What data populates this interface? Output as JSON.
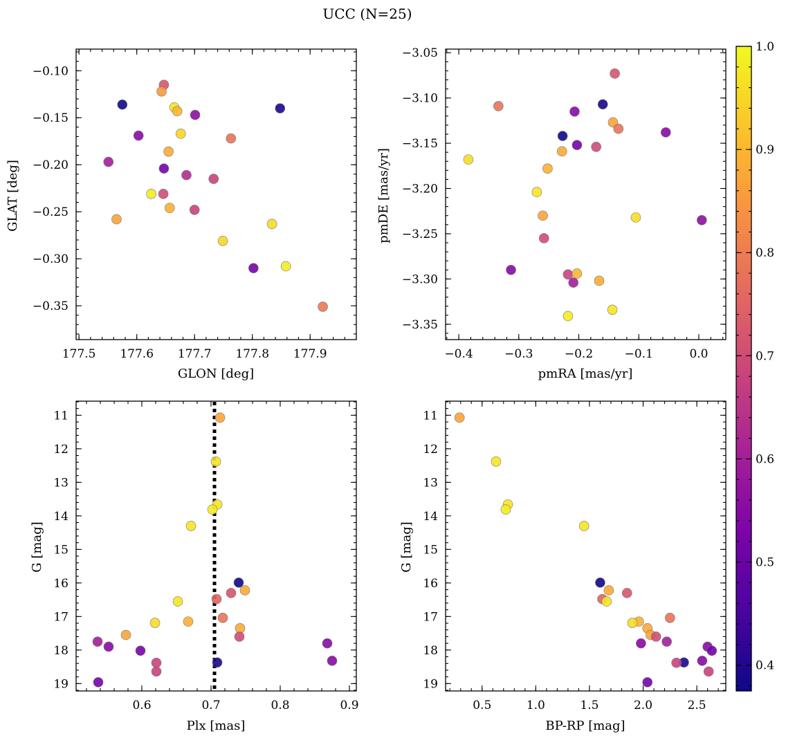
{
  "figure": {
    "title": "UCC (N=25)"
  },
  "colorbar": {
    "colormap": "plasma",
    "range": [
      0.375,
      1.0
    ],
    "ticks": [
      0.4,
      0.5,
      0.6,
      0.7,
      0.8,
      0.9,
      1.0
    ],
    "tick_labels": [
      "0.4",
      "0.5",
      "0.6",
      "0.7",
      "0.8",
      "0.9",
      "1.0"
    ]
  },
  "chart_data": [
    {
      "type": "scatter",
      "id": "glon-glat",
      "xlabel": "GLON [deg]",
      "ylabel": "GLAT [deg]",
      "xlim": [
        177.495,
        177.98
      ],
      "ylim": [
        -0.386,
        -0.077
      ],
      "xticks": [
        177.5,
        177.6,
        177.7,
        177.8,
        177.9
      ],
      "xtick_labels": [
        "177.5",
        "177.6",
        "177.7",
        "177.8",
        "177.9"
      ],
      "yticks": [
        -0.1,
        -0.15,
        -0.2,
        -0.25,
        -0.3,
        -0.35
      ],
      "ytick_labels": [
        "−0.10",
        "−0.15",
        "−0.20",
        "−0.25",
        "−0.30",
        "−0.35"
      ],
      "y_inverted": false,
      "points": [
        {
          "x": 177.575,
          "y": -0.136,
          "c": 0.38
        },
        {
          "x": 177.848,
          "y": -0.14,
          "c": 0.39
        },
        {
          "x": 177.647,
          "y": -0.115,
          "c": 0.72
        },
        {
          "x": 177.643,
          "y": -0.122,
          "c": 0.85
        },
        {
          "x": 177.665,
          "y": -0.139,
          "c": 0.97
        },
        {
          "x": 177.67,
          "y": -0.143,
          "c": 0.9
        },
        {
          "x": 177.701,
          "y": -0.147,
          "c": 0.56
        },
        {
          "x": 177.603,
          "y": -0.169,
          "c": 0.55
        },
        {
          "x": 177.676,
          "y": -0.167,
          "c": 0.95
        },
        {
          "x": 177.763,
          "y": -0.172,
          "c": 0.78
        },
        {
          "x": 177.655,
          "y": -0.186,
          "c": 0.88
        },
        {
          "x": 177.551,
          "y": -0.197,
          "c": 0.6
        },
        {
          "x": 177.647,
          "y": -0.204,
          "c": 0.52
        },
        {
          "x": 177.686,
          "y": -0.211,
          "c": 0.63
        },
        {
          "x": 177.733,
          "y": -0.215,
          "c": 0.68
        },
        {
          "x": 177.625,
          "y": -0.231,
          "c": 0.98
        },
        {
          "x": 177.646,
          "y": -0.231,
          "c": 0.7
        },
        {
          "x": 177.657,
          "y": -0.246,
          "c": 0.89
        },
        {
          "x": 177.7,
          "y": -0.248,
          "c": 0.68
        },
        {
          "x": 177.565,
          "y": -0.258,
          "c": 0.87
        },
        {
          "x": 177.834,
          "y": -0.263,
          "c": 0.96
        },
        {
          "x": 177.749,
          "y": -0.281,
          "c": 0.95
        },
        {
          "x": 177.802,
          "y": -0.31,
          "c": 0.52
        },
        {
          "x": 177.858,
          "y": -0.308,
          "c": 0.98
        },
        {
          "x": 177.922,
          "y": -0.351,
          "c": 0.79
        }
      ]
    },
    {
      "type": "scatter",
      "id": "pmra-pmde",
      "xlabel": "pmRA [mas/yr]",
      "ylabel": "pmDE [mas/yr]",
      "xlim": [
        -0.422,
        0.045
      ],
      "ylim": [
        -3.367,
        -3.046
      ],
      "xticks": [
        -0.4,
        -0.3,
        -0.2,
        -0.1,
        0.0
      ],
      "xtick_labels": [
        "−0.4",
        "−0.3",
        "−0.2",
        "−0.1",
        "0.0"
      ],
      "yticks": [
        -3.05,
        -3.1,
        -3.15,
        -3.2,
        -3.25,
        -3.3,
        -3.35
      ],
      "ytick_labels": [
        "−3.05",
        "−3.10",
        "−3.15",
        "−3.20",
        "−3.25",
        "−3.30",
        "−3.35"
      ],
      "y_inverted": false,
      "points": [
        {
          "x": -0.14,
          "y": -3.073,
          "c": 0.72
        },
        {
          "x": -0.334,
          "y": -3.109,
          "c": 0.78
        },
        {
          "x": -0.16,
          "y": -3.107,
          "c": 0.39
        },
        {
          "x": -0.207,
          "y": -3.115,
          "c": 0.55
        },
        {
          "x": -0.143,
          "y": -3.127,
          "c": 0.87
        },
        {
          "x": -0.134,
          "y": -3.134,
          "c": 0.78
        },
        {
          "x": -0.055,
          "y": -3.138,
          "c": 0.55
        },
        {
          "x": -0.227,
          "y": -3.142,
          "c": 0.38
        },
        {
          "x": -0.203,
          "y": -3.152,
          "c": 0.52
        },
        {
          "x": -0.171,
          "y": -3.154,
          "c": 0.7
        },
        {
          "x": -0.228,
          "y": -3.159,
          "c": 0.88
        },
        {
          "x": -0.384,
          "y": -3.168,
          "c": 0.96
        },
        {
          "x": -0.252,
          "y": -3.178,
          "c": 0.89
        },
        {
          "x": -0.27,
          "y": -3.204,
          "c": 0.97
        },
        {
          "x": -0.26,
          "y": -3.23,
          "c": 0.87
        },
        {
          "x": -0.105,
          "y": -3.232,
          "c": 0.96
        },
        {
          "x": 0.005,
          "y": -3.235,
          "c": 0.56
        },
        {
          "x": -0.258,
          "y": -3.255,
          "c": 0.7
        },
        {
          "x": -0.313,
          "y": -3.29,
          "c": 0.55
        },
        {
          "x": -0.218,
          "y": -3.295,
          "c": 0.68
        },
        {
          "x": -0.203,
          "y": -3.294,
          "c": 0.9
        },
        {
          "x": -0.209,
          "y": -3.304,
          "c": 0.6
        },
        {
          "x": -0.166,
          "y": -3.302,
          "c": 0.88
        },
        {
          "x": -0.218,
          "y": -3.341,
          "c": 0.98
        },
        {
          "x": -0.144,
          "y": -3.334,
          "c": 0.97
        }
      ]
    },
    {
      "type": "scatter",
      "id": "plx-g",
      "xlabel": "Plx [mas]",
      "ylabel": "G [mag]",
      "xlim": [
        0.505,
        0.91
      ],
      "ylim": [
        19.22,
        10.58
      ],
      "xticks": [
        0.6,
        0.7,
        0.8,
        0.9
      ],
      "xtick_labels": [
        "0.6",
        "0.7",
        "0.8",
        "0.9"
      ],
      "yticks": [
        11,
        12,
        13,
        14,
        15,
        16,
        17,
        18,
        19
      ],
      "ytick_labels": [
        "11",
        "12",
        "13",
        "14",
        "15",
        "16",
        "17",
        "18",
        "19"
      ],
      "y_inverted": true,
      "vline": {
        "x": 0.705,
        "style": "dotted",
        "color": "#000000"
      },
      "points": [
        {
          "x": 0.713,
          "y": 11.07,
          "c": 0.87
        },
        {
          "x": 0.707,
          "y": 12.38,
          "c": 0.97
        },
        {
          "x": 0.709,
          "y": 13.66,
          "c": 0.97
        },
        {
          "x": 0.702,
          "y": 13.81,
          "c": 0.98
        },
        {
          "x": 0.671,
          "y": 14.3,
          "c": 0.97
        },
        {
          "x": 0.74,
          "y": 15.99,
          "c": 0.38
        },
        {
          "x": 0.749,
          "y": 16.22,
          "c": 0.88
        },
        {
          "x": 0.729,
          "y": 16.3,
          "c": 0.72
        },
        {
          "x": 0.708,
          "y": 16.48,
          "c": 0.75
        },
        {
          "x": 0.652,
          "y": 16.55,
          "c": 0.97
        },
        {
          "x": 0.717,
          "y": 17.04,
          "c": 0.78
        },
        {
          "x": 0.667,
          "y": 17.15,
          "c": 0.89
        },
        {
          "x": 0.619,
          "y": 17.19,
          "c": 0.96
        },
        {
          "x": 0.742,
          "y": 17.35,
          "c": 0.88
        },
        {
          "x": 0.577,
          "y": 17.55,
          "c": 0.87
        },
        {
          "x": 0.741,
          "y": 17.6,
          "c": 0.7
        },
        {
          "x": 0.536,
          "y": 17.75,
          "c": 0.6
        },
        {
          "x": 0.868,
          "y": 17.8,
          "c": 0.55
        },
        {
          "x": 0.552,
          "y": 17.9,
          "c": 0.55
        },
        {
          "x": 0.598,
          "y": 18.02,
          "c": 0.52
        },
        {
          "x": 0.875,
          "y": 18.32,
          "c": 0.55
        },
        {
          "x": 0.709,
          "y": 18.37,
          "c": 0.39
        },
        {
          "x": 0.621,
          "y": 18.38,
          "c": 0.68
        },
        {
          "x": 0.621,
          "y": 18.64,
          "c": 0.68
        },
        {
          "x": 0.537,
          "y": 18.96,
          "c": 0.52
        }
      ]
    },
    {
      "type": "scatter",
      "id": "bprp-g",
      "xlabel": "BP-RP [mag]",
      "ylabel": "G [mag]",
      "xlim": [
        0.16,
        2.77
      ],
      "ylim": [
        19.22,
        10.58
      ],
      "xticks": [
        0.5,
        1.0,
        1.5,
        2.0,
        2.5
      ],
      "xtick_labels": [
        "0.5",
        "1.0",
        "1.5",
        "2.0",
        "2.5"
      ],
      "yticks": [
        11,
        12,
        13,
        14,
        15,
        16,
        17,
        18,
        19
      ],
      "ytick_labels": [
        "11",
        "12",
        "13",
        "14",
        "15",
        "16",
        "17",
        "18",
        "19"
      ],
      "y_inverted": true,
      "points": [
        {
          "x": 0.29,
          "y": 11.07,
          "c": 0.87
        },
        {
          "x": 0.63,
          "y": 12.38,
          "c": 0.97
        },
        {
          "x": 0.74,
          "y": 13.66,
          "c": 0.97
        },
        {
          "x": 0.72,
          "y": 13.81,
          "c": 0.98
        },
        {
          "x": 1.45,
          "y": 14.3,
          "c": 0.97
        },
        {
          "x": 1.6,
          "y": 15.99,
          "c": 0.38
        },
        {
          "x": 1.68,
          "y": 16.22,
          "c": 0.88
        },
        {
          "x": 1.85,
          "y": 16.3,
          "c": 0.72
        },
        {
          "x": 1.62,
          "y": 16.48,
          "c": 0.75
        },
        {
          "x": 1.66,
          "y": 16.55,
          "c": 0.97
        },
        {
          "x": 2.25,
          "y": 17.04,
          "c": 0.78
        },
        {
          "x": 1.96,
          "y": 17.15,
          "c": 0.89
        },
        {
          "x": 1.9,
          "y": 17.19,
          "c": 0.96
        },
        {
          "x": 2.04,
          "y": 17.35,
          "c": 0.88
        },
        {
          "x": 2.07,
          "y": 17.55,
          "c": 0.87
        },
        {
          "x": 2.12,
          "y": 17.6,
          "c": 0.7
        },
        {
          "x": 2.22,
          "y": 17.75,
          "c": 0.6
        },
        {
          "x": 1.98,
          "y": 17.8,
          "c": 0.55
        },
        {
          "x": 2.6,
          "y": 17.9,
          "c": 0.55
        },
        {
          "x": 2.64,
          "y": 18.02,
          "c": 0.52
        },
        {
          "x": 2.55,
          "y": 18.32,
          "c": 0.55
        },
        {
          "x": 2.38,
          "y": 18.37,
          "c": 0.39
        },
        {
          "x": 2.31,
          "y": 18.38,
          "c": 0.68
        },
        {
          "x": 2.61,
          "y": 18.64,
          "c": 0.68
        },
        {
          "x": 2.04,
          "y": 18.96,
          "c": 0.52
        }
      ]
    }
  ]
}
